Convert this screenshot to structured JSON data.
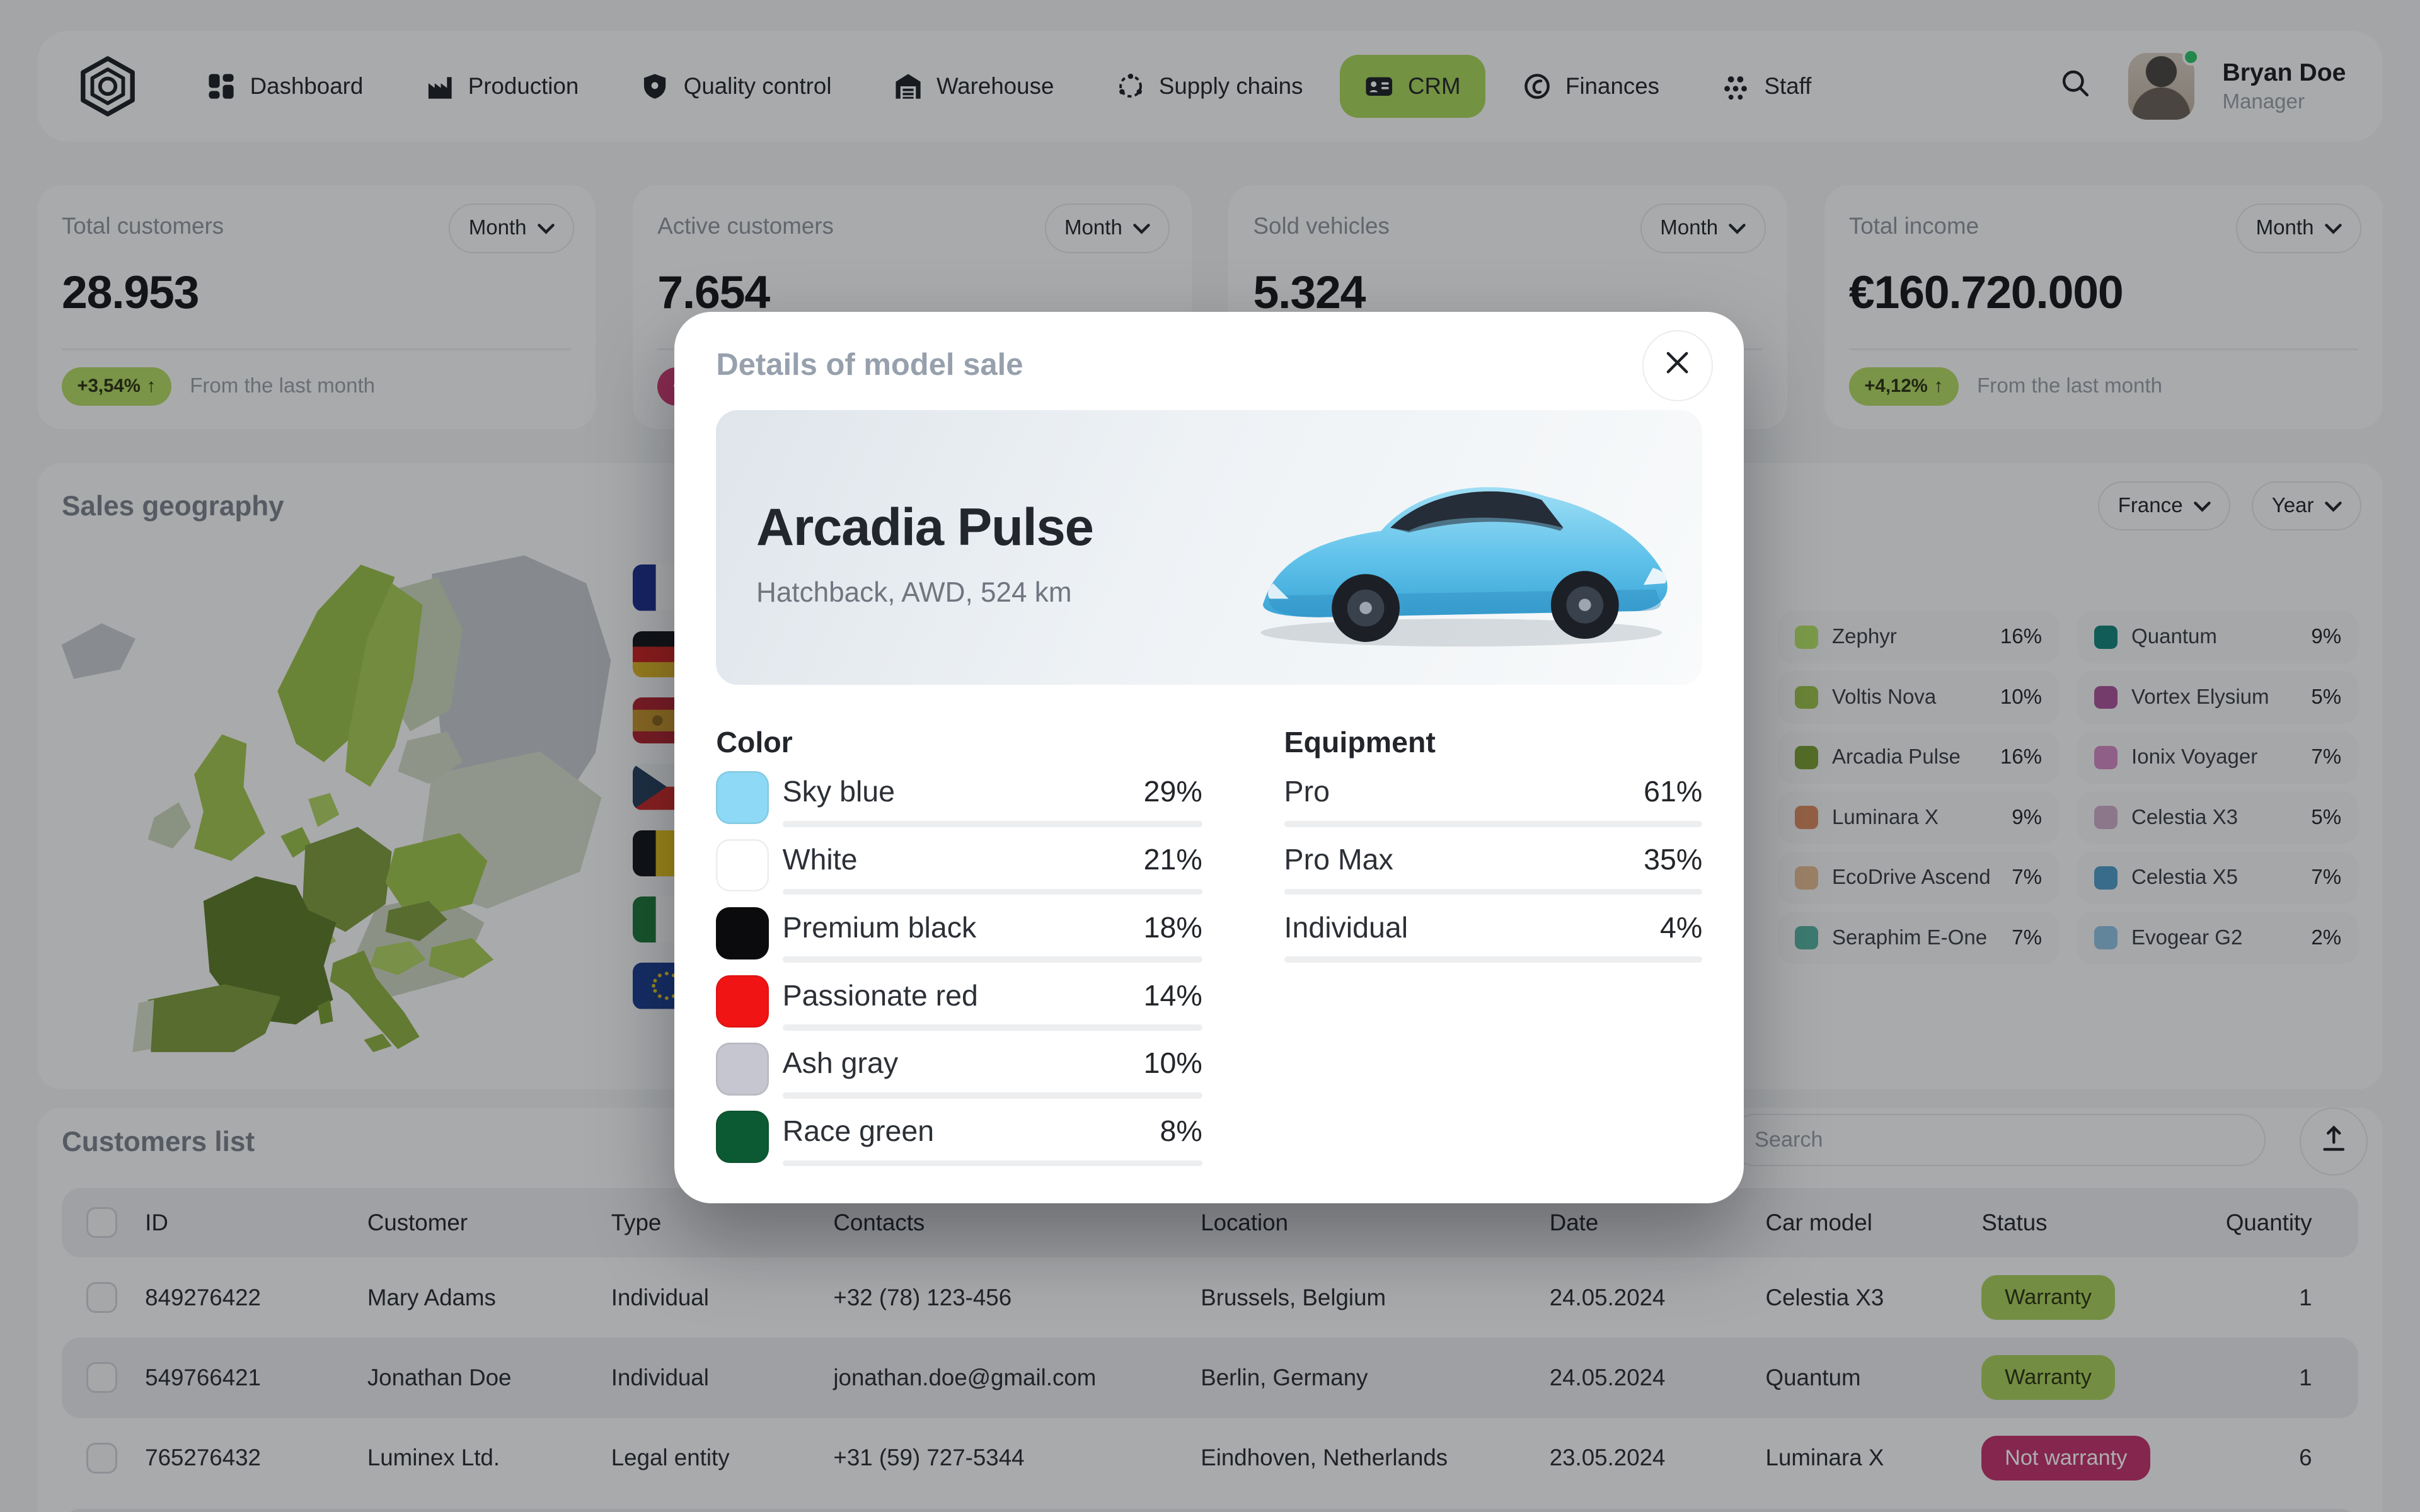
{
  "nav": {
    "items": [
      {
        "label": "Dashboard",
        "icon": "dashboard"
      },
      {
        "label": "Production",
        "icon": "factory"
      },
      {
        "label": "Quality control",
        "icon": "shield"
      },
      {
        "label": "Warehouse",
        "icon": "warehouse"
      },
      {
        "label": "Supply chains",
        "icon": "supply-chain"
      },
      {
        "label": "CRM",
        "icon": "crm-card"
      },
      {
        "label": "Finances",
        "icon": "coin"
      },
      {
        "label": "Staff",
        "icon": "people"
      }
    ],
    "active_item": "CRM",
    "user": {
      "name": "Bryan Doe",
      "role": "Manager"
    }
  },
  "stats": {
    "period_label": "Month",
    "cards": [
      {
        "title": "Total customers",
        "value": "28.953",
        "change": "+3,54%",
        "direction": "up",
        "note": "From the last month"
      },
      {
        "title": "Active customers",
        "value": "7.654",
        "change": "−",
        "direction": "down",
        "note": ""
      },
      {
        "title": "Sold vehicles",
        "value": "5.324",
        "change": "",
        "direction": "",
        "note": ""
      },
      {
        "title": "Total income",
        "value": "€160.720.000",
        "change": "+4,12%",
        "direction": "up",
        "note": "From the last month"
      }
    ]
  },
  "geography": {
    "title": "Sales geography",
    "country_filter": "France",
    "period_filter": "Year",
    "flags": [
      "France",
      "Germany",
      "Spain",
      "Czech Republic",
      "Belgium",
      "Italy",
      "European Union"
    ],
    "legend": [
      {
        "name": "Zephyr",
        "pct": "16%",
        "color": "#b4e266"
      },
      {
        "name": "Voltis Nova",
        "pct": "10%",
        "color": "#9cc14b"
      },
      {
        "name": "Arcadia Pulse",
        "pct": "16%",
        "color": "#789f35"
      },
      {
        "name": "Luminara X",
        "pct": "9%",
        "color": "#d98a5f"
      },
      {
        "name": "EcoDrive Ascend",
        "pct": "7%",
        "color": "#e6bd92"
      },
      {
        "name": "Seraphim E-One",
        "pct": "7%",
        "color": "#55b2a2"
      },
      {
        "name": "Quantum",
        "pct": "9%",
        "color": "#15847b"
      },
      {
        "name": "Vortex Elysium",
        "pct": "5%",
        "color": "#a9549a"
      },
      {
        "name": "Ionix Voyager",
        "pct": "7%",
        "color": "#d489c6"
      },
      {
        "name": "Celestia X3",
        "pct": "5%",
        "color": "#cfaec8"
      },
      {
        "name": "Celestia X5",
        "pct": "7%",
        "color": "#4f9dc9"
      },
      {
        "name": "Evogear G2",
        "pct": "2%",
        "color": "#8fc3e4"
      }
    ]
  },
  "modal": {
    "title": "Details of model sale",
    "car": {
      "name": "Arcadia Pulse",
      "specs": "Hatchback, AWD, 524 km"
    },
    "color_section": {
      "title": "Color",
      "items": [
        {
          "label": "Sky blue",
          "pct": "29%",
          "bar": 29,
          "swatch": "#8ed9f5"
        },
        {
          "label": "White",
          "pct": "21%",
          "bar": 21,
          "swatch": "#ffffff"
        },
        {
          "label": "Premium black",
          "pct": "18%",
          "bar": 18,
          "swatch": "#0b0b0d"
        },
        {
          "label": "Passionate red",
          "pct": "14%",
          "bar": 14,
          "swatch": "#f01414"
        },
        {
          "label": "Ash gray",
          "pct": "10%",
          "bar": 10,
          "swatch": "#c6c6d0"
        },
        {
          "label": "Race green",
          "pct": "8%",
          "bar": 8,
          "swatch": "#0c5a33"
        }
      ]
    },
    "equipment_section": {
      "title": "Equipment",
      "items": [
        {
          "label": "Pro",
          "pct": "61%",
          "bar": 61
        },
        {
          "label": "Pro Max",
          "pct": "35%",
          "bar": 35
        },
        {
          "label": "Individual",
          "pct": "4%",
          "bar": 4
        }
      ]
    }
  },
  "customers": {
    "title": "Customers list",
    "search_placeholder": "Search",
    "columns": [
      "ID",
      "Customer",
      "Type",
      "Contacts",
      "Location",
      "Date",
      "Car model",
      "Status",
      "Quantity"
    ],
    "rows": [
      {
        "id": "849276422",
        "customer": "Mary Adams",
        "type": "Individual",
        "contacts": "+32 (78) 123-456",
        "location": "Brussels, Belgium",
        "date": "24.05.2024",
        "car_model": "Celestia X3",
        "status": "Warranty",
        "status_kind": "ok",
        "quantity": "1"
      },
      {
        "id": "549766421",
        "customer": "Jonathan Doe",
        "type": "Individual",
        "contacts": "jonathan.doe@gmail.com",
        "location": "Berlin, Germany",
        "date": "24.05.2024",
        "car_model": "Quantum",
        "status": "Warranty",
        "status_kind": "ok",
        "quantity": "1"
      },
      {
        "id": "765276432",
        "customer": "Luminex Ltd.",
        "type": "Legal entity",
        "contacts": "+31 (59) 727-5344",
        "location": "Eindhoven, Netherlands",
        "date": "23.05.2024",
        "car_model": "Luminara X",
        "status": "Not warranty",
        "status_kind": "bad",
        "quantity": "6"
      }
    ]
  },
  "colors": {
    "accent_green": "#a6cc52",
    "nav_active_green": "#a9d65c",
    "badge_green": "#b3d964",
    "badge_pink": "#cf3b76",
    "status_green": "#a9d15c",
    "status_pink": "#c2336e",
    "map_selected": "#5e7b2a"
  }
}
